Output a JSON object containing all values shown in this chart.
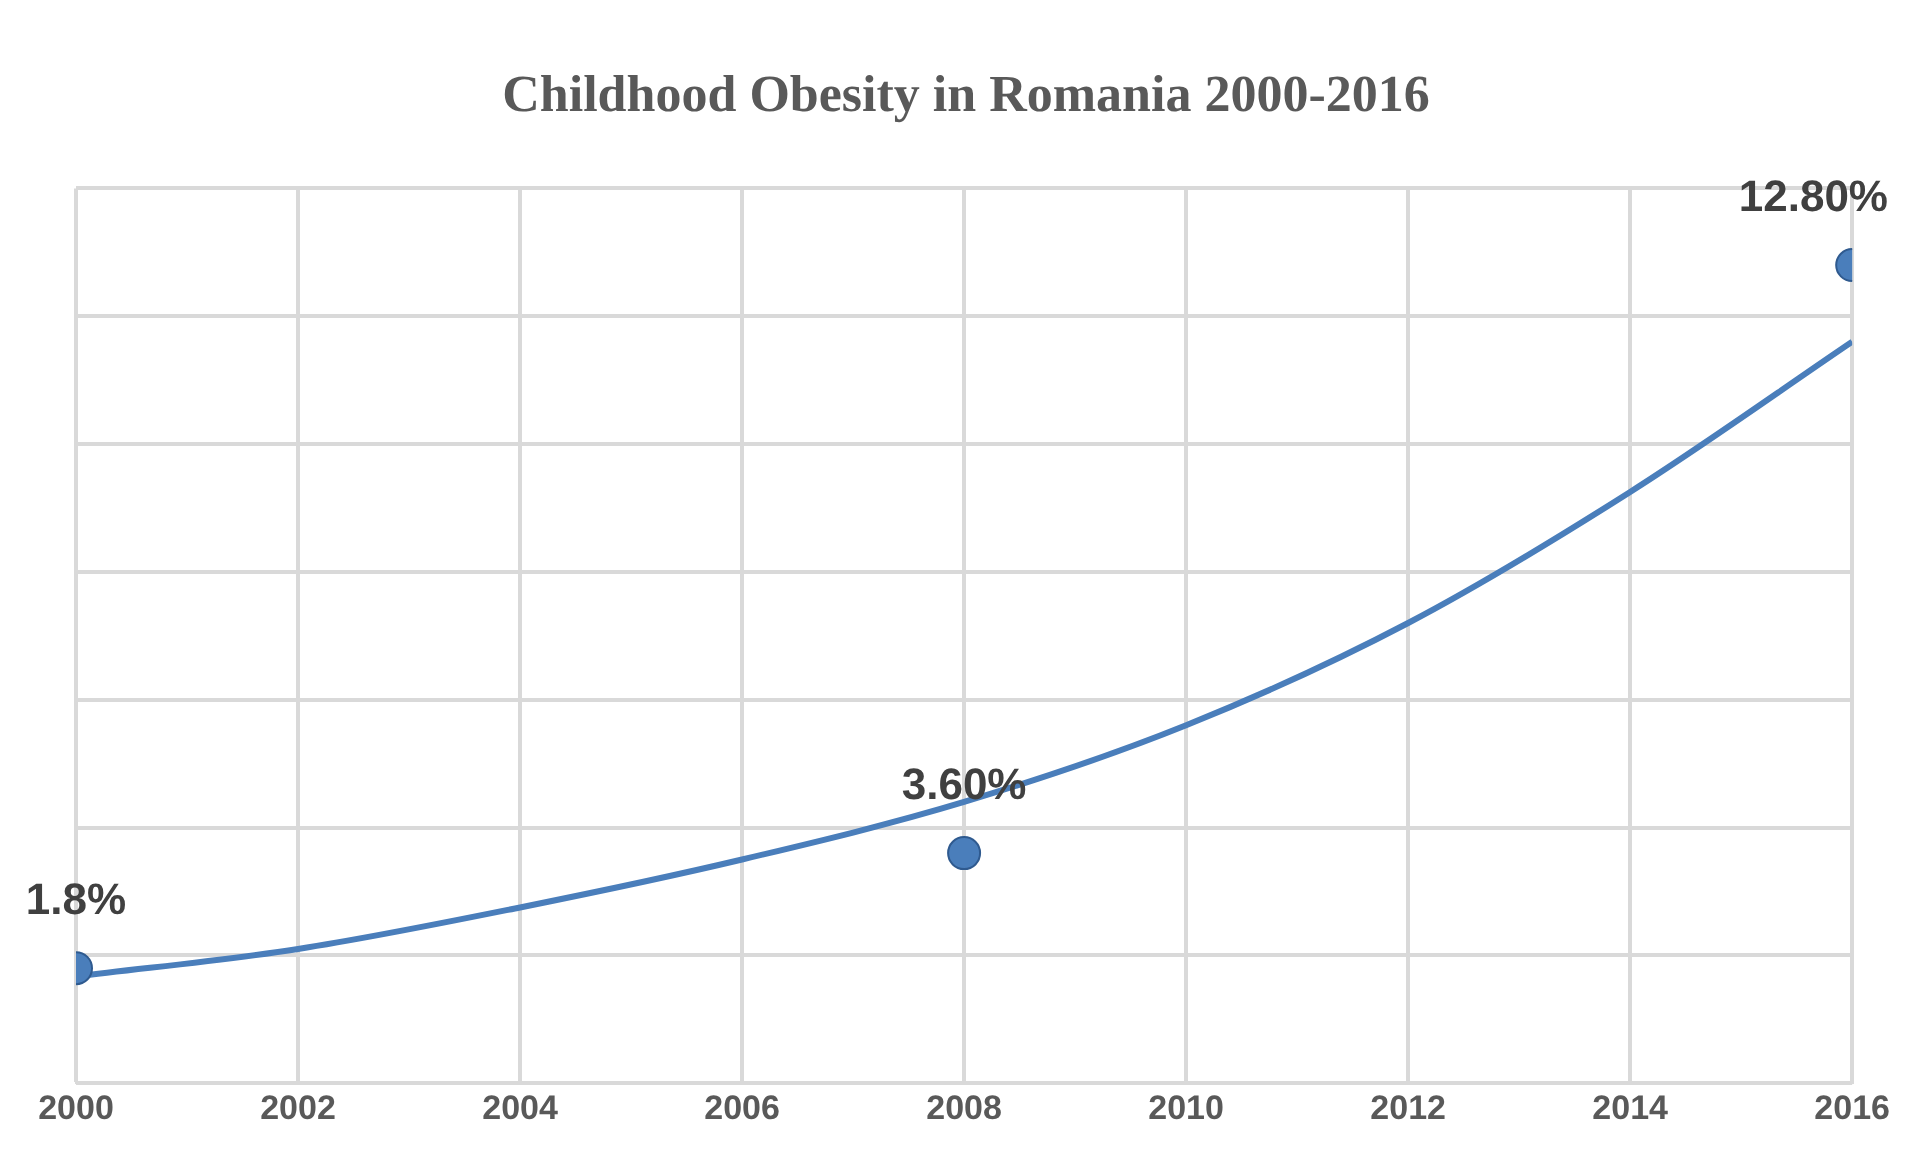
{
  "chart_data": {
    "type": "scatter",
    "title": "Childhood Obesity in Romania 2000-2016",
    "x": [
      2000,
      2008,
      2016
    ],
    "series": [
      {
        "type": "scatter",
        "color": "#4a7ebb",
        "marker": "circle",
        "values": [
          1.8,
          3.6,
          12.8
        ],
        "value_labels": [
          "1.8%",
          "3.60%",
          "12.80%"
        ]
      },
      {
        "type": "line",
        "color": "#4a7ebb",
        "marker": "none",
        "x": [
          2000,
          2002,
          2004,
          2006,
          2008,
          2010,
          2012,
          2014,
          2016
        ],
        "values": [
          1.67,
          2.1,
          2.75,
          3.5,
          4.4,
          5.6,
          7.2,
          9.25,
          11.6
        ]
      }
    ],
    "xlim": [
      2000,
      2016
    ],
    "xticks": [
      2000,
      2002,
      2004,
      2006,
      2008,
      2010,
      2012,
      2014,
      2016
    ],
    "ylim": [
      0,
      14
    ],
    "yticks": [
      {
        "value": 0,
        "label": null
      },
      {
        "value": 2,
        "label": null
      },
      {
        "value": 4,
        "label": null
      },
      {
        "value": 6,
        "label": null
      },
      {
        "value": 8,
        "label": null
      },
      {
        "value": 10,
        "label": null
      },
      {
        "value": 12,
        "label": null
      },
      {
        "value": 14,
        "label": null
      }
    ],
    "grid": true,
    "tick_labels": "x",
    "line_style": "solid"
  }
}
